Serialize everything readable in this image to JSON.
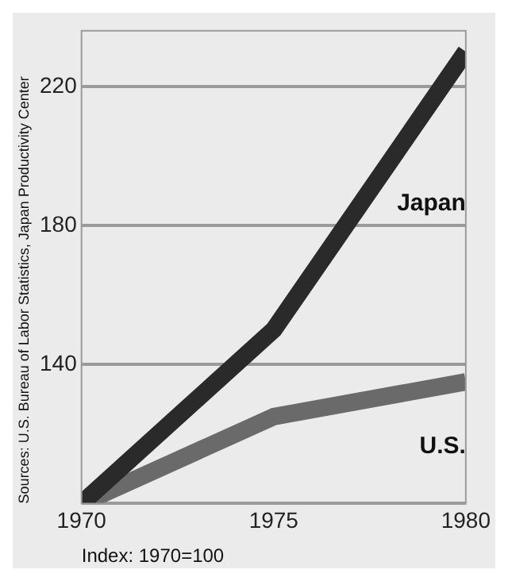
{
  "chart_data": {
    "type": "line",
    "x": [
      1970,
      1975,
      1980
    ],
    "series": [
      {
        "name": "Japan",
        "color": "#2a2a2a",
        "values": [
          100,
          150,
          230
        ]
      },
      {
        "name": "U.S.",
        "color": "#6a6a6a",
        "values": [
          100,
          125,
          135
        ]
      }
    ],
    "xlim": [
      1970,
      1980
    ],
    "xticks": [
      1970,
      1975,
      1980
    ],
    "ylim": [
      100,
      236
    ],
    "yticks": [
      {
        "value": 100,
        "label": null
      },
      140,
      180,
      220
    ],
    "grid": "y",
    "legend": false,
    "marker": "none",
    "line_style": "solid",
    "annotations": [
      "Index: 1970=100",
      "Sources: U.S. Bureau of Labor Statistics, Japan Productivity Center"
    ]
  }
}
